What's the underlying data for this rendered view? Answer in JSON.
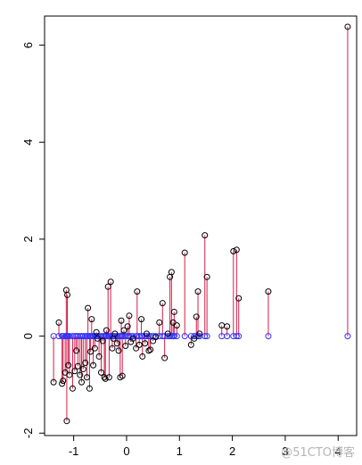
{
  "chart_data": {
    "type": "scatter",
    "title": "",
    "xlabel": "",
    "ylabel": "",
    "xlim": [
      -1.55,
      4.35
    ],
    "ylim": [
      -2.05,
      6.6
    ],
    "x_ticks": [
      "-1",
      "0",
      "1",
      "2",
      "3",
      "4"
    ],
    "x_tick_values": [
      -1,
      0,
      1,
      2,
      3,
      4
    ],
    "y_ticks": [
      "-2",
      "0",
      "2",
      "4",
      "6"
    ],
    "y_tick_values": [
      -2,
      0,
      2,
      4,
      6
    ],
    "grid": false,
    "legend": "none",
    "colors": {
      "points": "#000000",
      "baseline_points": "#3333ff",
      "segments": "#d21f4b"
    },
    "points": [
      [
        -1.38,
        -0.95
      ],
      [
        -1.28,
        0.28
      ],
      [
        -1.22,
        -0.98
      ],
      [
        -1.2,
        -0.92
      ],
      [
        -1.16,
        -0.75
      ],
      [
        -1.14,
        0.95
      ],
      [
        -1.12,
        0.85
      ],
      [
        -1.1,
        -0.6
      ],
      [
        -1.08,
        -0.8
      ],
      [
        -1.13,
        -1.75
      ],
      [
        -1.02,
        -1.08
      ],
      [
        -0.98,
        -0.72
      ],
      [
        -0.95,
        -0.3
      ],
      [
        -0.92,
        -0.62
      ],
      [
        -0.88,
        -0.8
      ],
      [
        -0.85,
        -0.95
      ],
      [
        -0.82,
        -0.68
      ],
      [
        -0.78,
        -0.55
      ],
      [
        -0.75,
        -0.85
      ],
      [
        -0.73,
        0.58
      ],
      [
        -0.7,
        -1.08
      ],
      [
        -0.68,
        -0.32
      ],
      [
        -0.66,
        0.35
      ],
      [
        -0.63,
        -0.6
      ],
      [
        -0.6,
        -0.25
      ],
      [
        -0.57,
        0.08
      ],
      [
        -0.55,
        -0.05
      ],
      [
        -0.52,
        -0.42
      ],
      [
        -0.48,
        -0.75
      ],
      [
        -0.45,
        -0.1
      ],
      [
        -0.42,
        -0.85
      ],
      [
        -0.4,
        -0.88
      ],
      [
        -0.38,
        0.12
      ],
      [
        -0.35,
        1.02
      ],
      [
        -0.33,
        -0.85
      ],
      [
        -0.3,
        1.12
      ],
      [
        -0.27,
        -0.25
      ],
      [
        -0.25,
        -0.05
      ],
      [
        -0.22,
        0.05
      ],
      [
        -0.18,
        -0.15
      ],
      [
        -0.15,
        -0.3
      ],
      [
        -0.12,
        -0.85
      ],
      [
        -0.1,
        0.32
      ],
      [
        -0.08,
        -0.82
      ],
      [
        -0.05,
        0.12
      ],
      [
        -0.02,
        -0.2
      ],
      [
        0.02,
        0.2
      ],
      [
        0.05,
        0.42
      ],
      [
        0.08,
        -0.12
      ],
      [
        0.12,
        -0.05
      ],
      [
        0.18,
        -0.25
      ],
      [
        0.2,
        0.92
      ],
      [
        0.24,
        -0.18
      ],
      [
        0.28,
        0.35
      ],
      [
        0.3,
        -0.42
      ],
      [
        0.35,
        -0.15
      ],
      [
        0.38,
        0.05
      ],
      [
        0.42,
        -0.3
      ],
      [
        0.45,
        -0.28
      ],
      [
        0.5,
        -0.1
      ],
      [
        0.55,
        -0.02
      ],
      [
        0.62,
        0.28
      ],
      [
        0.68,
        0.68
      ],
      [
        0.72,
        -0.45
      ],
      [
        0.78,
        0.05
      ],
      [
        0.82,
        1.22
      ],
      [
        0.85,
        1.32
      ],
      [
        0.88,
        0.28
      ],
      [
        0.9,
        0.5
      ],
      [
        0.95,
        0.22
      ],
      [
        1.1,
        1.72
      ],
      [
        1.22,
        -0.18
      ],
      [
        1.28,
        -0.05
      ],
      [
        1.32,
        0.4
      ],
      [
        1.35,
        0.92
      ],
      [
        1.38,
        0.05
      ],
      [
        1.48,
        2.08
      ],
      [
        1.52,
        1.22
      ],
      [
        1.8,
        0.22
      ],
      [
        1.9,
        0.2
      ],
      [
        2.02,
        1.75
      ],
      [
        2.08,
        1.78
      ],
      [
        2.12,
        0.78
      ],
      [
        2.68,
        0.92
      ],
      [
        4.18,
        6.38
      ]
    ]
  },
  "watermark": "@51CTO博客"
}
